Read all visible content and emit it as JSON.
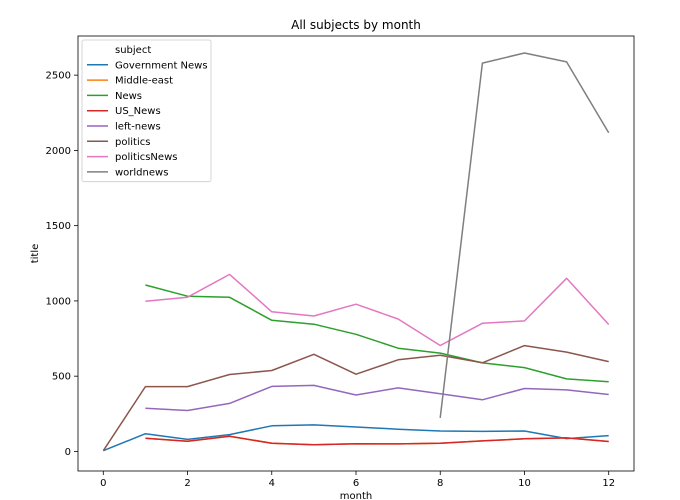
{
  "chart_data": {
    "type": "line",
    "title": "All subjects by month",
    "xlabel": "month",
    "ylabel": "title",
    "xlim": [
      -0.6,
      12.6
    ],
    "ylim": [
      -130,
      2760
    ],
    "xticks": [
      0,
      2,
      4,
      6,
      8,
      10,
      12
    ],
    "yticks": [
      0,
      500,
      1000,
      1500,
      2000,
      2500
    ],
    "grid": false,
    "legend": {
      "title": "subject",
      "placement": "top-left"
    },
    "series": [
      {
        "name": "Government News",
        "color": "#1f77b4",
        "x": [
          0,
          1,
          2,
          3,
          4,
          5,
          6,
          7,
          8,
          9,
          10,
          11,
          12
        ],
        "y": [
          5,
          118,
          80,
          112,
          170,
          176,
          162,
          148,
          136,
          133,
          136,
          85,
          105
        ]
      },
      {
        "name": "Middle-east",
        "color": "#ff7f0e",
        "x": [
          1,
          2,
          3,
          4,
          5,
          6,
          7,
          8,
          9,
          10,
          11,
          12
        ],
        "y": [
          88,
          67,
          101,
          54,
          45,
          51,
          50,
          55,
          70,
          84,
          90,
          66
        ]
      },
      {
        "name": "News",
        "color": "#2ca02c",
        "x": [
          1,
          2,
          3,
          4,
          5,
          6,
          7,
          8,
          9,
          10,
          11,
          12
        ],
        "y": [
          1106,
          1031,
          1024,
          871,
          845,
          778,
          686,
          653,
          588,
          557,
          482,
          463
        ]
      },
      {
        "name": "US_News",
        "color": "#d62728",
        "x": [
          1,
          2,
          3,
          4,
          5,
          6,
          7,
          8,
          9,
          10,
          11,
          12
        ],
        "y": [
          88,
          67,
          101,
          54,
          45,
          51,
          50,
          55,
          70,
          84,
          90,
          66
        ]
      },
      {
        "name": "left-news",
        "color": "#9467bd",
        "x": [
          1,
          2,
          3,
          4,
          5,
          6,
          7,
          8,
          9,
          10,
          11,
          12
        ],
        "y": [
          287,
          272,
          319,
          432,
          439,
          375,
          422,
          383,
          343,
          418,
          409,
          378
        ]
      },
      {
        "name": "politics",
        "color": "#8c564b",
        "x": [
          0,
          1,
          2,
          3,
          4,
          5,
          6,
          7,
          8,
          9,
          10,
          11,
          12
        ],
        "y": [
          5,
          431,
          431,
          511,
          538,
          645,
          513,
          609,
          639,
          589,
          703,
          660,
          597
        ]
      },
      {
        "name": "politicsNews",
        "color": "#e377c2",
        "x": [
          1,
          2,
          3,
          4,
          5,
          6,
          7,
          8,
          9,
          10,
          11,
          12
        ],
        "y": [
          998,
          1025,
          1176,
          928,
          900,
          978,
          880,
          704,
          851,
          867,
          1150,
          843
        ]
      },
      {
        "name": "worldnews",
        "color": "#7f7f7f",
        "x": [
          8,
          9,
          10,
          11,
          12
        ],
        "y": [
          223,
          2580,
          2647,
          2588,
          2117
        ]
      }
    ]
  }
}
